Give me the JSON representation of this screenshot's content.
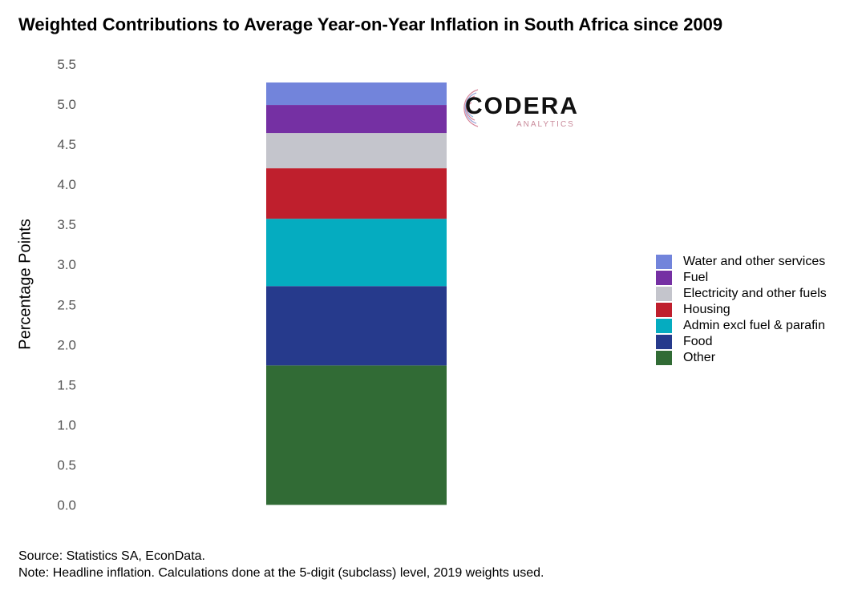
{
  "chart_data": {
    "type": "bar",
    "stacked": true,
    "title": "Weighted Contributions to Average Year-on-Year Inflation in South Africa since 2009",
    "xlabel": "",
    "ylabel": "Percentage Points",
    "ylim": [
      0,
      5.5
    ],
    "yticks": [
      "0.0",
      "0.5",
      "1.0",
      "1.5",
      "2.0",
      "2.5",
      "3.0",
      "3.5",
      "4.0",
      "4.5",
      "5.0",
      "5.5"
    ],
    "grid": false,
    "legend_position": "right",
    "categories": [
      ""
    ],
    "series": [
      {
        "name": "Other",
        "values": [
          1.74
        ],
        "color": "#316b35"
      },
      {
        "name": "Food",
        "values": [
          0.99
        ],
        "color": "#263a8c"
      },
      {
        "name": "Admin excl fuel & parafin",
        "values": [
          0.84
        ],
        "color": "#05acc0"
      },
      {
        "name": "Housing",
        "values": [
          0.63
        ],
        "color": "#bf1f2d"
      },
      {
        "name": "Electricity and other fuels",
        "values": [
          0.44
        ],
        "color": "#c4c5cc"
      },
      {
        "name": "Fuel",
        "values": [
          0.35
        ],
        "color": "#7530a3"
      },
      {
        "name": "Water and other services",
        "values": [
          0.28
        ],
        "color": "#7284db"
      }
    ]
  },
  "legend": {
    "items": [
      {
        "label": "Water and other services",
        "color": "#7284db"
      },
      {
        "label": "Fuel",
        "color": "#7530a3"
      },
      {
        "label": "Electricity and other fuels",
        "color": "#c4c5cc"
      },
      {
        "label": "Housing",
        "color": "#bf1f2d"
      },
      {
        "label": "Admin excl fuel & parafin",
        "color": "#05acc0"
      },
      {
        "label": "Food",
        "color": "#263a8c"
      },
      {
        "label": "Other",
        "color": "#316b35"
      }
    ]
  },
  "logo": {
    "name": "CODERA",
    "subtitle": "ANALYTICS"
  },
  "footer": {
    "source": "Source: Statistics SA, EconData.",
    "note": "Note: Headline inflation. Calculations done at the 5-digit (subclass) level, 2019 weights used."
  }
}
